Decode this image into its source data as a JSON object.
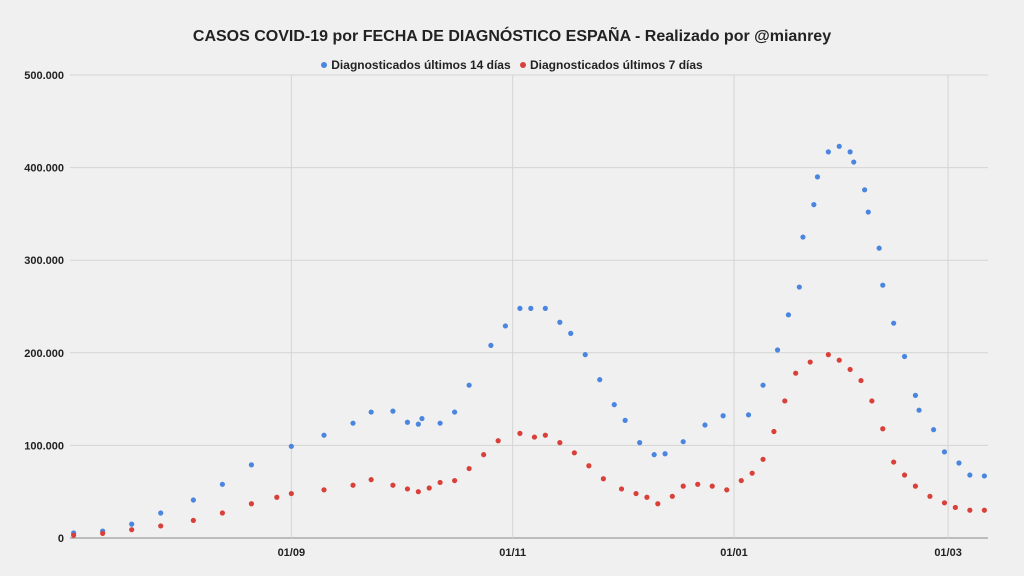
{
  "chart_data": {
    "type": "scatter",
    "title": "CASOS COVID-19 por FECHA DE DIAGNÓSTICO ESPAÑA - Realizado por @mianrey",
    "xlabel": "",
    "ylabel": "",
    "ylim": [
      0,
      500000
    ],
    "xlim": [
      "2020-07-02",
      "2021-03-12"
    ],
    "yticks": [
      0,
      100000,
      200000,
      300000,
      400000,
      500000
    ],
    "ytick_labels": [
      "0",
      "100.000",
      "200.000",
      "300.000",
      "400.000",
      "500.000"
    ],
    "xticks": [
      "2020-09-01",
      "2020-11-01",
      "2021-01-01",
      "2021-03-01"
    ],
    "xtick_labels": [
      "01/09",
      "01/11",
      "01/01",
      "01/03"
    ],
    "grid": true,
    "legend_position": "top",
    "series": [
      {
        "name": "Diagnosticados últimos 14 días",
        "color": "#4a86e0",
        "points": [
          [
            "2020-07-03",
            5400
          ],
          [
            "2020-07-11",
            7500
          ],
          [
            "2020-07-19",
            15000
          ],
          [
            "2020-07-27",
            27000
          ],
          [
            "2020-08-05",
            41000
          ],
          [
            "2020-08-13",
            58000
          ],
          [
            "2020-08-21",
            79000
          ],
          [
            "2020-09-01",
            99000
          ],
          [
            "2020-09-10",
            111000
          ],
          [
            "2020-09-18",
            124000
          ],
          [
            "2020-09-23",
            136000
          ],
          [
            "2020-09-29",
            137000
          ],
          [
            "2020-10-03",
            125000
          ],
          [
            "2020-10-06",
            123000
          ],
          [
            "2020-10-07",
            129000
          ],
          [
            "2020-10-12",
            124000
          ],
          [
            "2020-10-16",
            136000
          ],
          [
            "2020-10-20",
            165000
          ],
          [
            "2020-10-26",
            208000
          ],
          [
            "2020-10-30",
            229000
          ],
          [
            "2020-11-03",
            248000
          ],
          [
            "2020-11-06",
            248000
          ],
          [
            "2020-11-10",
            248000
          ],
          [
            "2020-11-14",
            233000
          ],
          [
            "2020-11-17",
            221000
          ],
          [
            "2020-11-21",
            198000
          ],
          [
            "2020-11-25",
            171000
          ],
          [
            "2020-11-29",
            144000
          ],
          [
            "2020-12-02",
            127000
          ],
          [
            "2020-12-06",
            103000
          ],
          [
            "2020-12-10",
            90000
          ],
          [
            "2020-12-13",
            91000
          ],
          [
            "2020-12-18",
            104000
          ],
          [
            "2020-12-24",
            122000
          ],
          [
            "2020-12-29",
            132000
          ],
          [
            "2021-01-05",
            133000
          ],
          [
            "2021-01-09",
            165000
          ],
          [
            "2021-01-13",
            203000
          ],
          [
            "2021-01-16",
            241000
          ],
          [
            "2021-01-19",
            271000
          ],
          [
            "2021-01-20",
            325000
          ],
          [
            "2021-01-23",
            360000
          ],
          [
            "2021-01-24",
            390000
          ],
          [
            "2021-01-27",
            417000
          ],
          [
            "2021-01-30",
            423000
          ],
          [
            "2021-02-02",
            417000
          ],
          [
            "2021-02-03",
            406000
          ],
          [
            "2021-02-06",
            376000
          ],
          [
            "2021-02-07",
            352000
          ],
          [
            "2021-02-10",
            313000
          ],
          [
            "2021-02-11",
            273000
          ],
          [
            "2021-02-14",
            232000
          ],
          [
            "2021-02-17",
            196000
          ],
          [
            "2021-02-20",
            154000
          ],
          [
            "2021-02-21",
            138000
          ],
          [
            "2021-02-25",
            117000
          ],
          [
            "2021-02-28",
            93000
          ],
          [
            "2021-03-04",
            81000
          ],
          [
            "2021-03-07",
            68000
          ],
          [
            "2021-03-11",
            67000
          ]
        ]
      },
      {
        "name": "Diagnosticados últimos 7 días",
        "color": "#d9403a",
        "points": [
          [
            "2020-07-03",
            3000
          ],
          [
            "2020-07-11",
            5000
          ],
          [
            "2020-07-19",
            9000
          ],
          [
            "2020-07-27",
            13000
          ],
          [
            "2020-08-05",
            19000
          ],
          [
            "2020-08-13",
            27000
          ],
          [
            "2020-08-21",
            37000
          ],
          [
            "2020-08-28",
            44000
          ],
          [
            "2020-09-01",
            48000
          ],
          [
            "2020-09-10",
            52000
          ],
          [
            "2020-09-18",
            57000
          ],
          [
            "2020-09-23",
            63000
          ],
          [
            "2020-09-29",
            57000
          ],
          [
            "2020-10-03",
            53000
          ],
          [
            "2020-10-06",
            50000
          ],
          [
            "2020-10-09",
            54000
          ],
          [
            "2020-10-12",
            60000
          ],
          [
            "2020-10-16",
            62000
          ],
          [
            "2020-10-20",
            75000
          ],
          [
            "2020-10-24",
            90000
          ],
          [
            "2020-10-28",
            105000
          ],
          [
            "2020-11-03",
            113000
          ],
          [
            "2020-11-07",
            109000
          ],
          [
            "2020-11-10",
            111000
          ],
          [
            "2020-11-14",
            103000
          ],
          [
            "2020-11-18",
            92000
          ],
          [
            "2020-11-22",
            78000
          ],
          [
            "2020-11-26",
            64000
          ],
          [
            "2020-12-01",
            53000
          ],
          [
            "2020-12-05",
            48000
          ],
          [
            "2020-12-08",
            44000
          ],
          [
            "2020-12-11",
            37000
          ],
          [
            "2020-12-15",
            45000
          ],
          [
            "2020-12-18",
            56000
          ],
          [
            "2020-12-22",
            58000
          ],
          [
            "2020-12-26",
            56000
          ],
          [
            "2020-12-30",
            52000
          ],
          [
            "2021-01-03",
            62000
          ],
          [
            "2021-01-06",
            70000
          ],
          [
            "2021-01-09",
            85000
          ],
          [
            "2021-01-12",
            115000
          ],
          [
            "2021-01-15",
            148000
          ],
          [
            "2021-01-18",
            178000
          ],
          [
            "2021-01-22",
            190000
          ],
          [
            "2021-01-27",
            198000
          ],
          [
            "2021-01-30",
            192000
          ],
          [
            "2021-02-02",
            182000
          ],
          [
            "2021-02-05",
            170000
          ],
          [
            "2021-02-08",
            148000
          ],
          [
            "2021-02-11",
            118000
          ],
          [
            "2021-02-14",
            82000
          ],
          [
            "2021-02-17",
            68000
          ],
          [
            "2021-02-20",
            56000
          ],
          [
            "2021-02-24",
            45000
          ],
          [
            "2021-02-28",
            38000
          ],
          [
            "2021-03-03",
            33000
          ],
          [
            "2021-03-07",
            30000
          ],
          [
            "2021-03-11",
            30000
          ]
        ]
      }
    ]
  }
}
